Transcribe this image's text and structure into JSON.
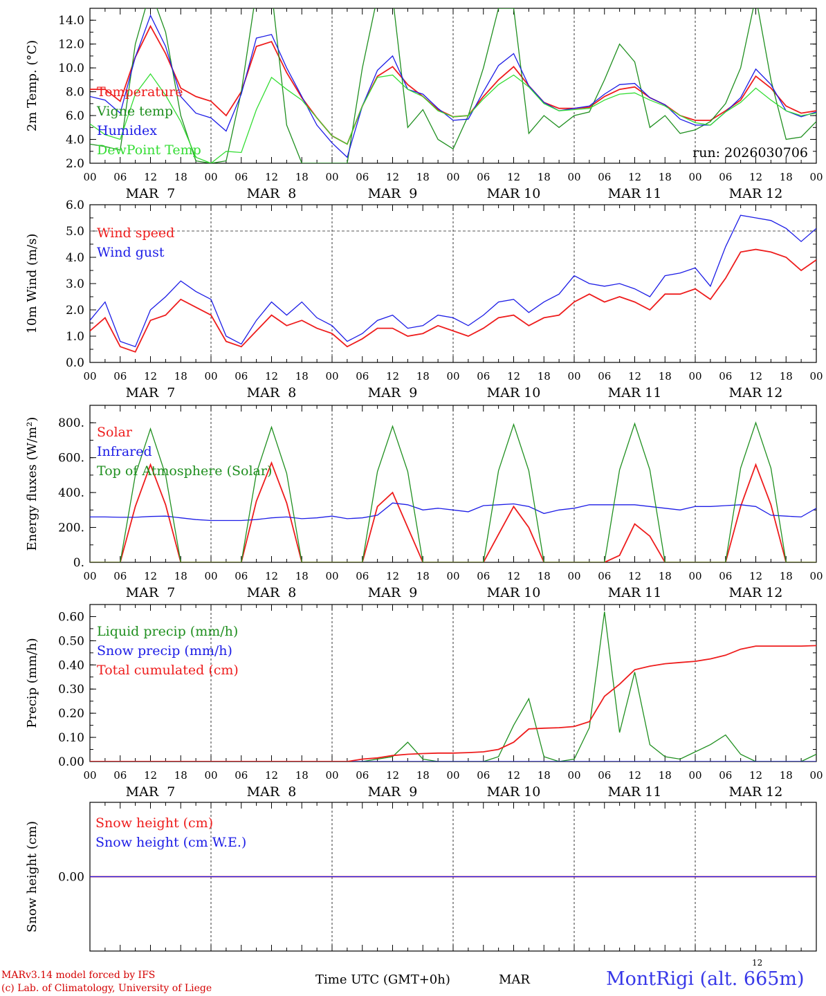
{
  "colors": {
    "red": "#ee1c1c",
    "green": "#1f8f1f",
    "blue": "#1c1ce6",
    "lightgreen": "#33dd33",
    "axis": "#000000",
    "station": "#3838e8"
  },
  "x_axis": {
    "tick_labels": [
      "00",
      "06",
      "12",
      "18",
      "00",
      "06",
      "12",
      "18",
      "00",
      "06",
      "12",
      "18",
      "00",
      "06",
      "12",
      "18",
      "00",
      "06",
      "12",
      "18",
      "00",
      "06",
      "12",
      "18",
      "00"
    ],
    "day_labels": [
      "MAR  7",
      "MAR  8",
      "MAR  9",
      "MAR 10",
      "MAR 11",
      "MAR 12"
    ]
  },
  "footer": {
    "credit_line1": "MARv3.14 model forced by IFS",
    "credit_line2": "(c) Lab. of Climatology, University of Liege",
    "xlabel": "Time UTC (GMT+0h)",
    "month": "MAR",
    "superscript": "12",
    "station": "MontRigi (alt. 665m)"
  },
  "chart_data": [
    {
      "type": "line",
      "ylabel": "2m Temp. (°C)",
      "ylim": [
        2,
        15
      ],
      "yticks": [
        "2.0",
        "4.0",
        "6.0",
        "8.0",
        "10.0",
        "12.0",
        "14.0"
      ],
      "ytick_values": [
        2,
        4,
        6,
        8,
        10,
        12,
        14
      ],
      "annotation": "run: 2026030706",
      "x_hours_from_mar7_00": [
        0,
        3,
        6,
        9,
        12,
        15,
        18,
        21,
        24,
        27,
        30,
        33,
        36,
        39,
        42,
        45,
        48,
        51,
        54,
        57,
        60,
        63,
        66,
        69,
        72,
        75,
        78,
        81,
        84,
        87,
        90,
        93,
        96,
        99,
        102,
        105,
        108,
        111,
        114,
        117,
        120,
        123,
        126,
        129,
        132,
        135,
        138,
        141,
        144
      ],
      "series": [
        {
          "name": "Temperature",
          "color": "red",
          "values": [
            8.2,
            8.2,
            7.2,
            10.9,
            13.5,
            11.2,
            8.3,
            7.6,
            7.2,
            6.0,
            8.0,
            11.8,
            12.2,
            9.6,
            7.5,
            5.8,
            4.3,
            3.6,
            6.8,
            9.3,
            10.1,
            8.6,
            7.6,
            6.5,
            5.9,
            6.0,
            7.6,
            9.0,
            10.1,
            8.5,
            7.1,
            6.6,
            6.6,
            6.7,
            7.6,
            8.2,
            8.4,
            7.5,
            6.9,
            6.0,
            5.6,
            5.6,
            6.4,
            7.3,
            9.3,
            8.3,
            6.8,
            6.2,
            6.4
          ]
        },
        {
          "name": "Vigne temp",
          "color": "green",
          "values": [
            3.6,
            3.4,
            3.1,
            12.0,
            16.5,
            13.0,
            6.0,
            2.2,
            2.0,
            2.2,
            8.0,
            16.5,
            16.5,
            5.2,
            2.0,
            2.0,
            2.0,
            2.0,
            10.0,
            16.0,
            16.0,
            5.0,
            6.5,
            4.0,
            3.2,
            6.0,
            10.0,
            15.0,
            15.0,
            4.5,
            6.0,
            5.0,
            6.0,
            6.3,
            9.0,
            12.0,
            10.5,
            5.0,
            6.0,
            4.5,
            4.8,
            5.5,
            7.0,
            10.0,
            16.0,
            9.0,
            4.0,
            4.2,
            5.5
          ]
        },
        {
          "name": "Humidex",
          "color": "blue",
          "values": [
            7.6,
            7.3,
            6.2,
            10.9,
            14.4,
            11.8,
            7.6,
            6.2,
            5.8,
            4.7,
            7.8,
            12.5,
            12.8,
            10.0,
            7.6,
            5.2,
            3.7,
            2.5,
            6.8,
            9.8,
            11.0,
            8.2,
            7.8,
            6.6,
            5.6,
            5.7,
            8.0,
            10.2,
            11.2,
            8.5,
            7.1,
            6.4,
            6.6,
            6.8,
            7.8,
            8.6,
            8.7,
            7.5,
            6.9,
            5.7,
            5.2,
            5.2,
            6.3,
            7.5,
            9.9,
            8.6,
            6.4,
            5.9,
            6.3
          ]
        },
        {
          "name": "DewPoint Temp",
          "color": "lightgreen",
          "values": [
            5.3,
            4.4,
            4.0,
            7.8,
            9.5,
            7.7,
            5.5,
            2.5,
            2.0,
            3.0,
            2.9,
            6.5,
            9.2,
            8.2,
            7.3,
            5.8,
            4.3,
            3.6,
            6.8,
            9.2,
            9.4,
            8.2,
            7.6,
            6.4,
            5.9,
            6.0,
            7.4,
            8.6,
            9.4,
            8.4,
            7.0,
            6.4,
            6.5,
            6.6,
            7.3,
            7.8,
            7.9,
            7.3,
            6.8,
            6.0,
            5.4,
            5.2,
            6.3,
            7.1,
            8.3,
            7.3,
            6.4,
            6.0,
            6.2
          ]
        }
      ]
    },
    {
      "type": "line",
      "ylabel": "10m Wind (m/s)",
      "ylim": [
        0,
        6
      ],
      "yticks": [
        "0.0",
        "1.0",
        "2.0",
        "3.0",
        "4.0",
        "5.0",
        "6.0"
      ],
      "ytick_values": [
        0,
        1,
        2,
        3,
        4,
        5,
        6
      ],
      "reference_line": 5.0,
      "x_hours_from_mar7_00": [
        0,
        3,
        6,
        9,
        12,
        15,
        18,
        21,
        24,
        27,
        30,
        33,
        36,
        39,
        42,
        45,
        48,
        51,
        54,
        57,
        60,
        63,
        66,
        69,
        72,
        75,
        78,
        81,
        84,
        87,
        90,
        93,
        96,
        99,
        102,
        105,
        108,
        111,
        114,
        117,
        120,
        123,
        126,
        129,
        132,
        135,
        138,
        141,
        144
      ],
      "series": [
        {
          "name": "Wind speed",
          "color": "red",
          "values": [
            1.2,
            1.7,
            0.6,
            0.4,
            1.6,
            1.8,
            2.4,
            2.1,
            1.8,
            0.8,
            0.6,
            1.2,
            1.8,
            1.4,
            1.6,
            1.3,
            1.1,
            0.6,
            0.9,
            1.3,
            1.3,
            1.0,
            1.1,
            1.4,
            1.2,
            1.0,
            1.3,
            1.7,
            1.8,
            1.4,
            1.7,
            1.8,
            2.3,
            2.6,
            2.3,
            2.5,
            2.3,
            2.0,
            2.6,
            2.6,
            2.8,
            2.4,
            3.2,
            4.2,
            4.3,
            4.2,
            4.0,
            3.5,
            3.9
          ]
        },
        {
          "name": "Wind gust",
          "color": "blue",
          "values": [
            1.6,
            2.3,
            0.8,
            0.6,
            2.0,
            2.5,
            3.1,
            2.7,
            2.4,
            1.0,
            0.7,
            1.6,
            2.3,
            1.8,
            2.3,
            1.7,
            1.4,
            0.8,
            1.1,
            1.6,
            1.8,
            1.3,
            1.4,
            1.8,
            1.7,
            1.4,
            1.8,
            2.3,
            2.4,
            1.9,
            2.3,
            2.6,
            3.3,
            3.0,
            2.9,
            3.0,
            2.8,
            2.5,
            3.3,
            3.4,
            3.6,
            2.9,
            4.4,
            5.6,
            5.5,
            5.4,
            5.1,
            4.6,
            5.1
          ]
        }
      ]
    },
    {
      "type": "line",
      "ylabel": "Energy fluxes (W/m²)",
      "ylim": [
        0,
        900
      ],
      "yticks": [
        "0.",
        "200.",
        "400.",
        "600.",
        "800."
      ],
      "ytick_values": [
        0,
        200,
        400,
        600,
        800
      ],
      "x_hours_from_mar7_00": [
        0,
        3,
        6,
        9,
        12,
        15,
        18,
        21,
        24,
        27,
        30,
        33,
        36,
        39,
        42,
        45,
        48,
        51,
        54,
        57,
        60,
        63,
        66,
        69,
        72,
        75,
        78,
        81,
        84,
        87,
        90,
        93,
        96,
        99,
        102,
        105,
        108,
        111,
        114,
        117,
        120,
        123,
        126,
        129,
        132,
        135,
        138,
        141,
        144
      ],
      "series": [
        {
          "name": "Solar",
          "color": "red",
          "values": [
            0,
            0,
            0,
            320,
            560,
            330,
            0,
            0,
            0,
            0,
            0,
            350,
            570,
            340,
            0,
            0,
            0,
            0,
            0,
            320,
            400,
            200,
            0,
            0,
            0,
            0,
            0,
            160,
            320,
            200,
            0,
            0,
            0,
            0,
            0,
            40,
            220,
            150,
            0,
            0,
            0,
            0,
            0,
            320,
            560,
            330,
            0,
            0,
            0
          ]
        },
        {
          "name": "Infrared",
          "color": "blue",
          "values": [
            260,
            260,
            258,
            258,
            263,
            265,
            255,
            245,
            240,
            240,
            240,
            245,
            255,
            260,
            250,
            255,
            265,
            250,
            255,
            270,
            340,
            330,
            300,
            310,
            300,
            290,
            325,
            330,
            335,
            320,
            280,
            300,
            310,
            330,
            330,
            330,
            330,
            320,
            310,
            300,
            320,
            320,
            325,
            330,
            320,
            270,
            265,
            260,
            310
          ]
        },
        {
          "name": "Top of Atmosphere (Solar)",
          "color": "green",
          "values": [
            0,
            0,
            0,
            500,
            765,
            500,
            0,
            0,
            0,
            0,
            0,
            510,
            775,
            510,
            0,
            0,
            0,
            0,
            0,
            520,
            780,
            520,
            0,
            0,
            0,
            0,
            0,
            525,
            790,
            525,
            0,
            0,
            0,
            0,
            0,
            530,
            795,
            530,
            0,
            0,
            0,
            0,
            0,
            540,
            800,
            540,
            0,
            0,
            0
          ]
        }
      ]
    },
    {
      "type": "line",
      "ylabel": "Precip (mm/h)",
      "ylim": [
        0,
        0.65
      ],
      "yticks": [
        "0.00",
        "0.10",
        "0.20",
        "0.30",
        "0.40",
        "0.50",
        "0.60"
      ],
      "ytick_values": [
        0,
        0.1,
        0.2,
        0.3,
        0.4,
        0.5,
        0.6
      ],
      "x_hours_from_mar7_00": [
        0,
        3,
        6,
        9,
        12,
        15,
        18,
        21,
        24,
        27,
        30,
        33,
        36,
        39,
        42,
        45,
        48,
        51,
        54,
        57,
        60,
        63,
        66,
        69,
        72,
        75,
        78,
        81,
        84,
        87,
        90,
        93,
        96,
        99,
        102,
        105,
        108,
        111,
        114,
        117,
        120,
        123,
        126,
        129,
        132,
        135,
        138,
        141,
        144
      ],
      "series": [
        {
          "name": "Liquid precip (mm/h)",
          "color": "green",
          "values": [
            0,
            0,
            0,
            0,
            0,
            0,
            0,
            0,
            0,
            0,
            0,
            0,
            0,
            0,
            0,
            0,
            0,
            0,
            0,
            0.01,
            0.02,
            0.08,
            0.01,
            0,
            0,
            0,
            0,
            0.02,
            0.15,
            0.26,
            0.02,
            0,
            0.01,
            0.14,
            0.62,
            0.12,
            0.37,
            0.07,
            0.02,
            0.01,
            0.04,
            0.07,
            0.11,
            0.03,
            0,
            0,
            0,
            0,
            0.03
          ]
        },
        {
          "name": "Snow precip (mm/h)",
          "color": "blue",
          "values": [
            0,
            0,
            0,
            0,
            0,
            0,
            0,
            0,
            0,
            0,
            0,
            0,
            0,
            0,
            0,
            0,
            0,
            0,
            0,
            0,
            0,
            0,
            0,
            0,
            0,
            0,
            0,
            0,
            0,
            0,
            0,
            0,
            0,
            0,
            0,
            0,
            0,
            0,
            0,
            0,
            0,
            0,
            0,
            0,
            0,
            0,
            0,
            0,
            0
          ]
        },
        {
          "name": "Total cumulated (cm)",
          "color": "red",
          "values": [
            0,
            0,
            0,
            0,
            0,
            0,
            0,
            0,
            0,
            0,
            0,
            0,
            0,
            0,
            0,
            0,
            0,
            0,
            0.01,
            0.015,
            0.025,
            0.03,
            0.033,
            0.035,
            0.035,
            0.037,
            0.04,
            0.05,
            0.08,
            0.135,
            0.138,
            0.14,
            0.145,
            0.165,
            0.27,
            0.32,
            0.38,
            0.395,
            0.405,
            0.41,
            0.415,
            0.425,
            0.44,
            0.465,
            0.478,
            0.478,
            0.478,
            0.478,
            0.48
          ]
        }
      ]
    },
    {
      "type": "line",
      "ylabel": "Snow height (cm)",
      "ylim": [
        -1,
        1
      ],
      "yticks": [
        "0.00"
      ],
      "ytick_values": [
        0
      ],
      "x_hours_from_mar7_00": [
        0,
        144
      ],
      "series": [
        {
          "name": "Snow height (cm)",
          "color": "red",
          "values": [
            0,
            0
          ]
        },
        {
          "name": "Snow height (cm W.E.)",
          "color": "blue",
          "values": [
            0,
            0
          ]
        }
      ]
    }
  ]
}
